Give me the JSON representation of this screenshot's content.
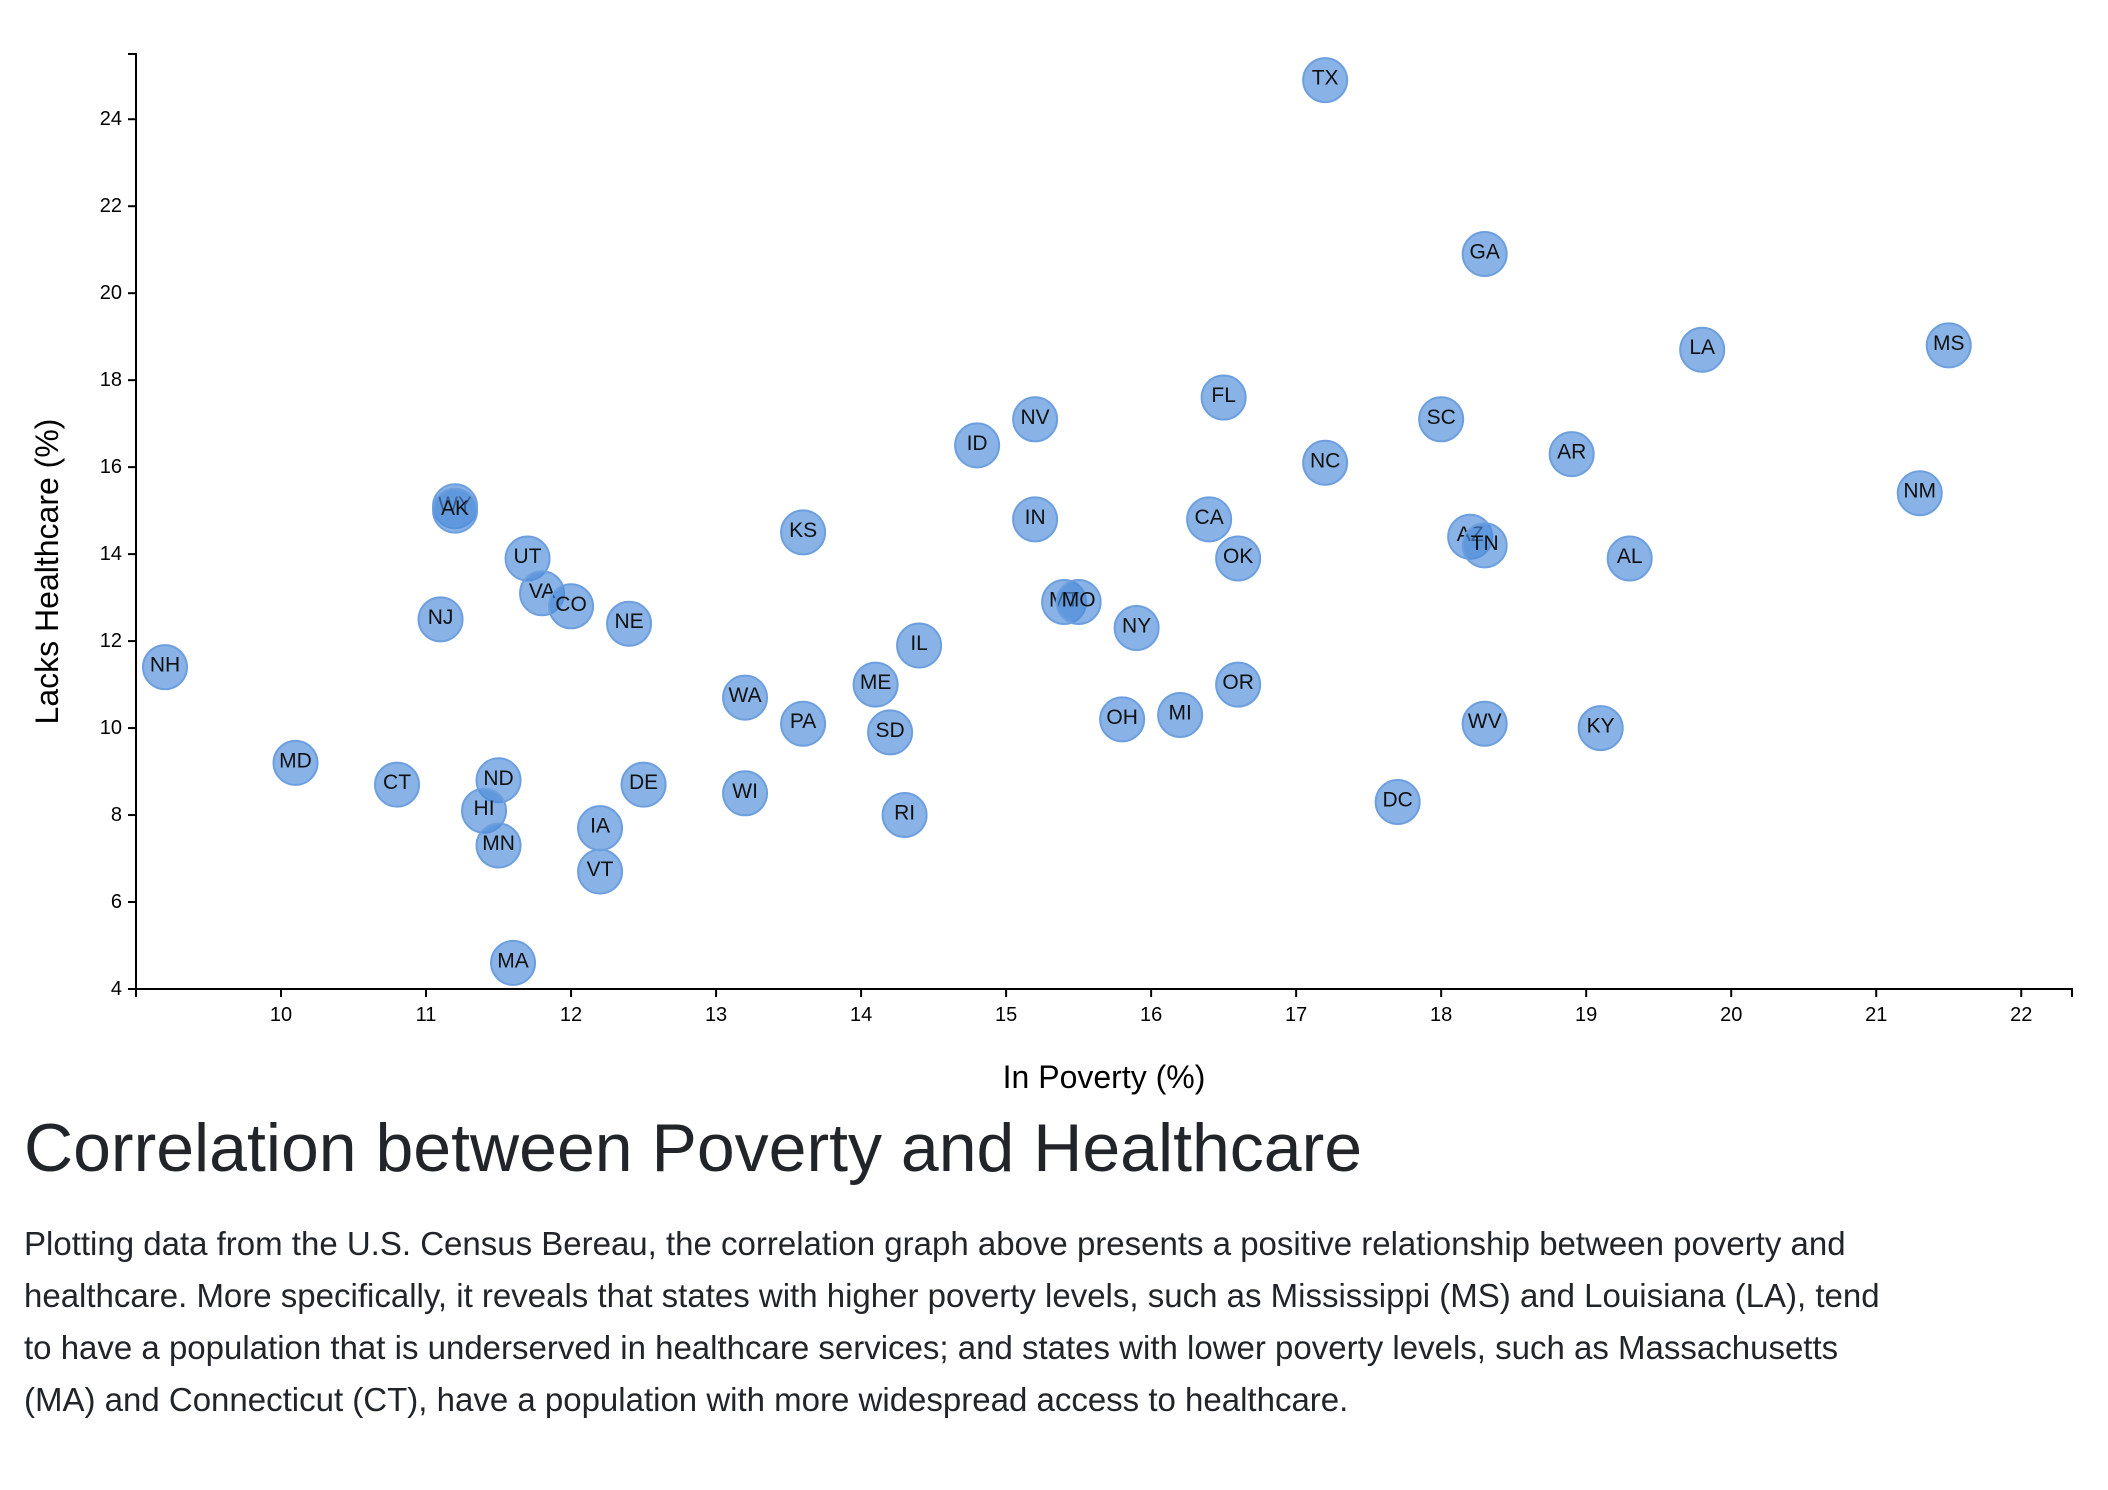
{
  "chart_data": {
    "type": "scatter",
    "xlabel": "In Poverty (%)",
    "ylabel": "Lacks Healthcare (%)",
    "xlim": [
      9.0,
      22.35
    ],
    "ylim": [
      4.0,
      25.5
    ],
    "xticks": [
      10,
      11,
      12,
      13,
      14,
      15,
      16,
      17,
      18,
      19,
      20,
      21,
      22
    ],
    "yticks": [
      4,
      6,
      8,
      10,
      12,
      14,
      16,
      18,
      20,
      22,
      24
    ],
    "grid": false,
    "points": [
      {
        "label": "TX",
        "x": 17.2,
        "y": 24.9
      },
      {
        "label": "GA",
        "x": 18.3,
        "y": 20.9
      },
      {
        "label": "LA",
        "x": 19.8,
        "y": 18.7
      },
      {
        "label": "MS",
        "x": 21.5,
        "y": 18.8
      },
      {
        "label": "FL",
        "x": 16.5,
        "y": 17.6
      },
      {
        "label": "NV",
        "x": 15.2,
        "y": 17.1
      },
      {
        "label": "SC",
        "x": 18.0,
        "y": 17.1
      },
      {
        "label": "ID",
        "x": 14.8,
        "y": 16.5
      },
      {
        "label": "AR",
        "x": 18.9,
        "y": 16.3
      },
      {
        "label": "NC",
        "x": 17.2,
        "y": 16.1
      },
      {
        "label": "NM",
        "x": 21.3,
        "y": 15.4
      },
      {
        "label": "WY",
        "x": 11.2,
        "y": 15.1
      },
      {
        "label": "AK",
        "x": 11.2,
        "y": 15.0
      },
      {
        "label": "IN",
        "x": 15.2,
        "y": 14.8
      },
      {
        "label": "CA",
        "x": 16.4,
        "y": 14.8
      },
      {
        "label": "KS",
        "x": 13.6,
        "y": 14.5
      },
      {
        "label": "AZ",
        "x": 18.2,
        "y": 14.4
      },
      {
        "label": "TN",
        "x": 18.3,
        "y": 14.2
      },
      {
        "label": "UT",
        "x": 11.7,
        "y": 13.9
      },
      {
        "label": "OK",
        "x": 16.6,
        "y": 13.9
      },
      {
        "label": "AL",
        "x": 19.3,
        "y": 13.9
      },
      {
        "label": "VA",
        "x": 11.8,
        "y": 13.1
      },
      {
        "label": "MT",
        "x": 15.4,
        "y": 12.9
      },
      {
        "label": "MO",
        "x": 15.5,
        "y": 12.9
      },
      {
        "label": "CO",
        "x": 12.0,
        "y": 12.8
      },
      {
        "label": "NJ",
        "x": 11.1,
        "y": 12.5
      },
      {
        "label": "NE",
        "x": 12.4,
        "y": 12.4
      },
      {
        "label": "NY",
        "x": 15.9,
        "y": 12.3
      },
      {
        "label": "IL",
        "x": 14.4,
        "y": 11.9
      },
      {
        "label": "NH",
        "x": 9.2,
        "y": 11.4
      },
      {
        "label": "ME",
        "x": 14.1,
        "y": 11.0
      },
      {
        "label": "OR",
        "x": 16.6,
        "y": 11.0
      },
      {
        "label": "WA",
        "x": 13.2,
        "y": 10.7
      },
      {
        "label": "MI",
        "x": 16.2,
        "y": 10.3
      },
      {
        "label": "OH",
        "x": 15.8,
        "y": 10.2
      },
      {
        "label": "PA",
        "x": 13.6,
        "y": 10.1
      },
      {
        "label": "WV",
        "x": 18.3,
        "y": 10.1
      },
      {
        "label": "KY",
        "x": 19.1,
        "y": 10.0
      },
      {
        "label": "SD",
        "x": 14.2,
        "y": 9.9
      },
      {
        "label": "MD",
        "x": 10.1,
        "y": 9.2
      },
      {
        "label": "ND",
        "x": 11.5,
        "y": 8.8
      },
      {
        "label": "CT",
        "x": 10.8,
        "y": 8.7
      },
      {
        "label": "DE",
        "x": 12.5,
        "y": 8.7
      },
      {
        "label": "WI",
        "x": 13.2,
        "y": 8.5
      },
      {
        "label": "DC",
        "x": 17.7,
        "y": 8.3
      },
      {
        "label": "HI",
        "x": 11.4,
        "y": 8.1
      },
      {
        "label": "RI",
        "x": 14.3,
        "y": 8.0
      },
      {
        "label": "IA",
        "x": 12.2,
        "y": 7.7
      },
      {
        "label": "MN",
        "x": 11.5,
        "y": 7.3
      },
      {
        "label": "VT",
        "x": 12.2,
        "y": 6.7
      },
      {
        "label": "MA",
        "x": 11.6,
        "y": 4.6
      }
    ],
    "colors": {
      "point": "#4a8ad8"
    }
  },
  "article": {
    "title": "Correlation between Poverty and Healthcare",
    "description": "Plotting data from the U.S. Census Bereau, the correlation graph above presents a positive relationship between poverty and healthcare. More specifically, it reveals that states with higher poverty levels, such as Mississippi (MS) and Louisiana (LA), tend to have a population that is underserved in healthcare services; and states with lower poverty levels, such as Massachusetts (MA) and Connecticut (CT), have a population with more widespread access to healthcare."
  }
}
